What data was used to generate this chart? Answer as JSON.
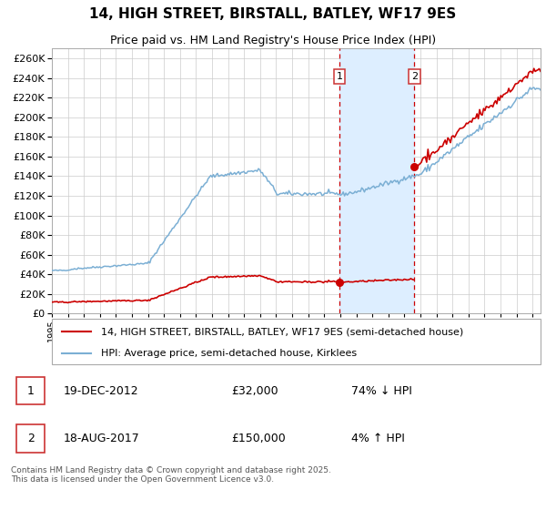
{
  "title": "14, HIGH STREET, BIRSTALL, BATLEY, WF17 9ES",
  "subtitle": "Price paid vs. HM Land Registry's House Price Index (HPI)",
  "legend_line1": "14, HIGH STREET, BIRSTALL, BATLEY, WF17 9ES (semi-detached house)",
  "legend_line2": "HPI: Average price, semi-detached house, Kirklees",
  "sale1_date": "19-DEC-2012",
  "sale1_price": "£32,000",
  "sale1_pct": "74% ↓ HPI",
  "sale2_date": "18-AUG-2017",
  "sale2_price": "£150,000",
  "sale2_pct": "4% ↑ HPI",
  "sale1_label": "1",
  "sale2_label": "2",
  "footer": "Contains HM Land Registry data © Crown copyright and database right 2025.\nThis data is licensed under the Open Government Licence v3.0.",
  "hpi_color": "#7bafd4",
  "prop_color": "#cc0000",
  "sale_dot_color": "#cc0000",
  "shade_color": "#ddeeff",
  "dashed_color": "#cc0000",
  "grid_color": "#cccccc",
  "bg_color": "#ffffff",
  "ylim": [
    0,
    270000
  ],
  "ytick_step": 20000,
  "x_start_year": 1995,
  "x_end_year": 2025,
  "sale1_year": 2012.96,
  "sale2_year": 2017.63,
  "sale1_price_val": 32000,
  "sale2_price_val": 150000
}
